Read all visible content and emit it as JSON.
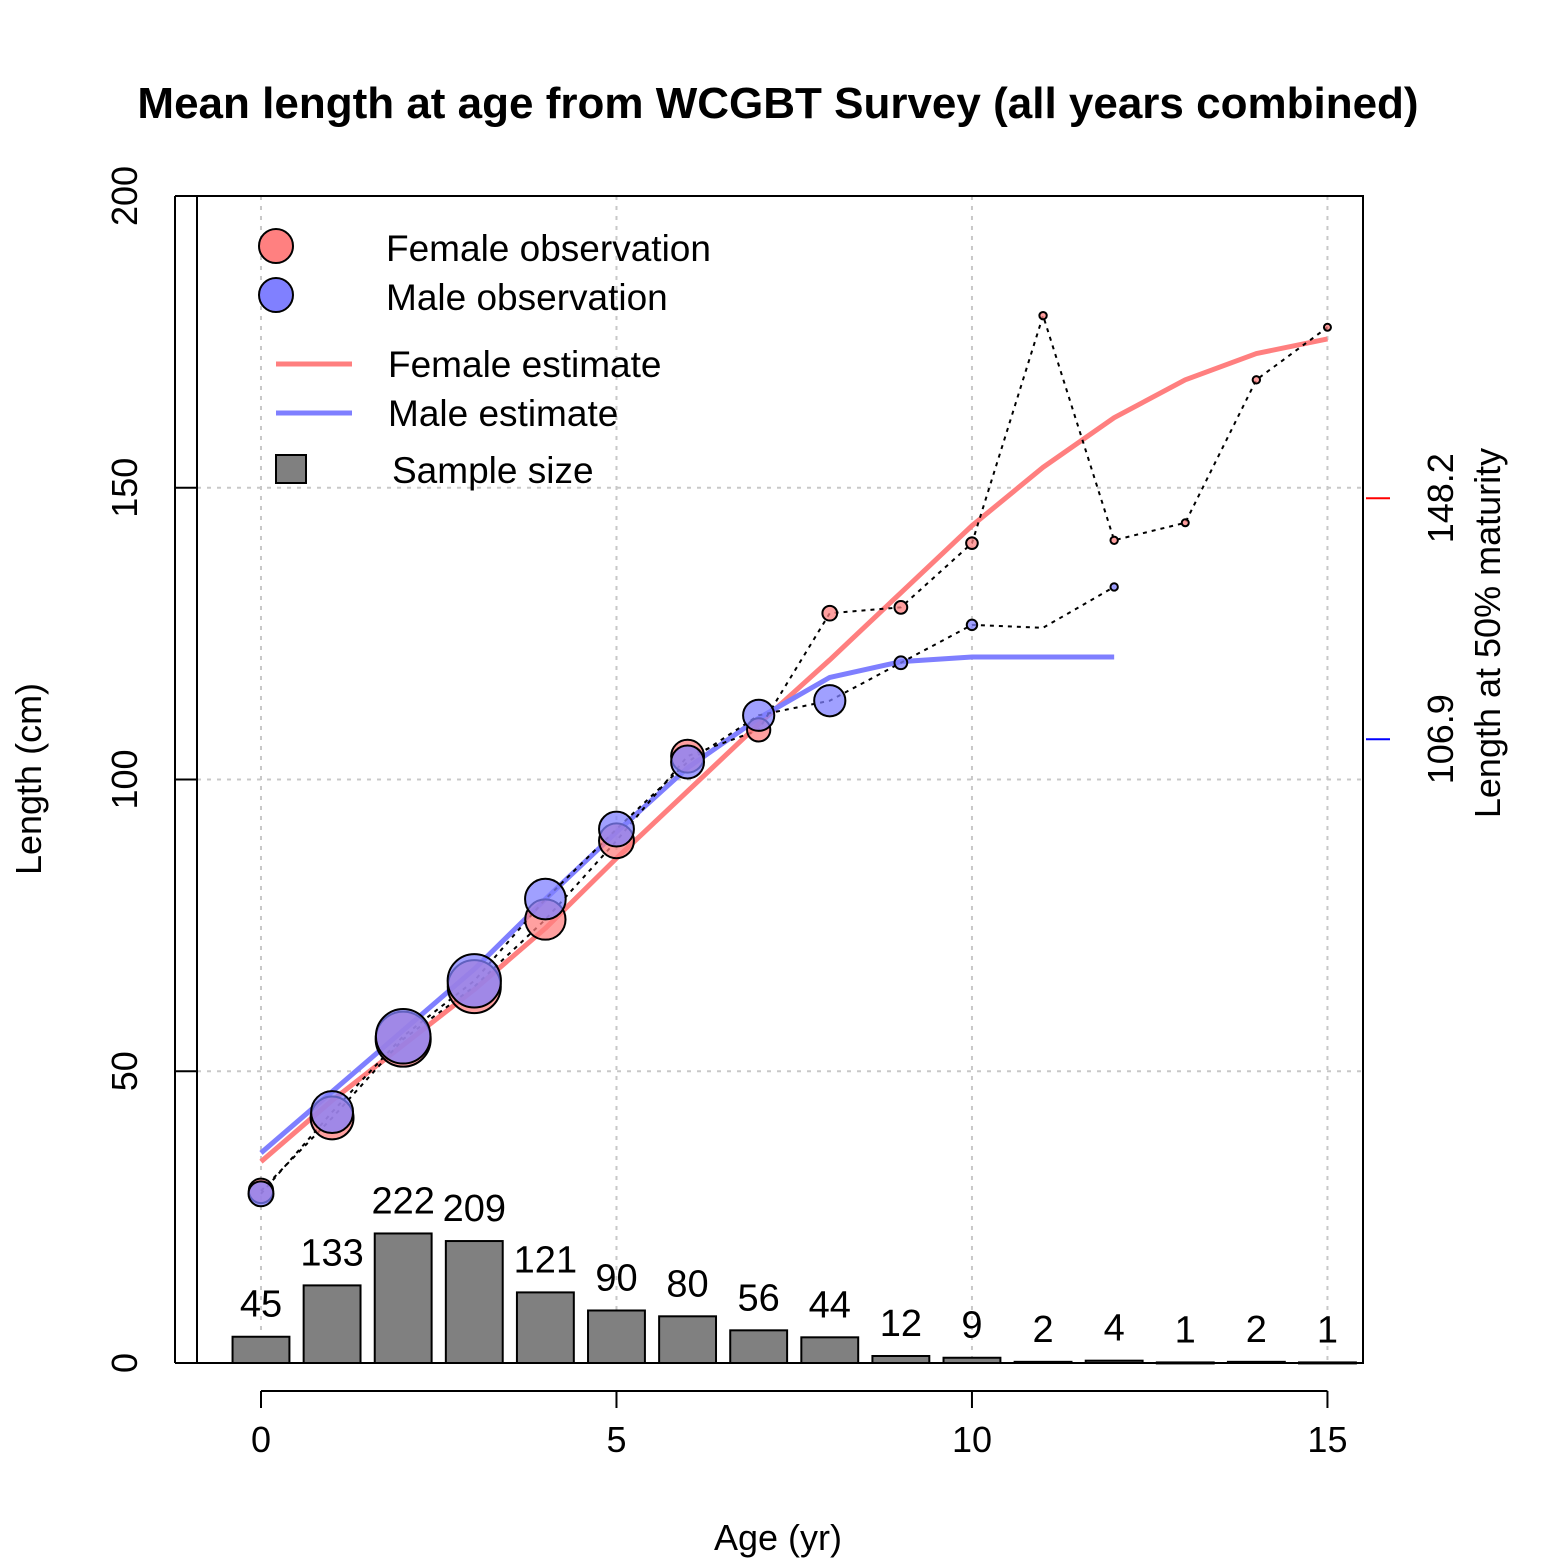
{
  "chart_data": {
    "type": "line",
    "title": "Mean length at age from WCGBT Survey (all years combined)",
    "xlabel": "Age (yr)",
    "ylabel": "Length (cm)",
    "right_axis_label": "Length at 50% maturity",
    "xlim": [
      -0.9,
      15.5
    ],
    "ylim": [
      0,
      200
    ],
    "x_ticks": [
      0,
      5,
      10,
      15
    ],
    "y_ticks": [
      0,
      50,
      100,
      150,
      200
    ],
    "grid": true,
    "legend_position": "top-left",
    "legend": [
      {
        "key": "female_obs",
        "label": "Female observation"
      },
      {
        "key": "male_obs",
        "label": "Male observation"
      },
      {
        "key": "female_est",
        "label": "Female estimate"
      },
      {
        "key": "male_est",
        "label": "Male estimate"
      },
      {
        "key": "sample",
        "label": "Sample size"
      }
    ],
    "colors": {
      "female_fill": "#ff8080",
      "male_fill": "#8080ff",
      "female_line": "#ff7f7f",
      "male_line": "#7f7fff",
      "female_marker": "#ff0000",
      "male_marker": "#0000ff",
      "bar_fill": "#808080"
    },
    "maturity_markers": [
      {
        "sex": "female",
        "value": 148.2,
        "label": "148.2"
      },
      {
        "sex": "male",
        "value": 106.9,
        "label": "106.9"
      }
    ],
    "sample_size": {
      "ages": [
        0,
        1,
        2,
        3,
        4,
        5,
        6,
        7,
        8,
        9,
        10,
        11,
        12,
        13,
        14,
        15
      ],
      "n": [
        45,
        133,
        222,
        209,
        121,
        90,
        80,
        56,
        44,
        12,
        9,
        2,
        4,
        1,
        2,
        1
      ],
      "labels": [
        "45",
        "133",
        "222",
        "209",
        "121",
        "90",
        "80",
        "56",
        "44",
        "12",
        "9",
        "2",
        "4",
        "1",
        "2",
        "1"
      ],
      "bar_scale": 0.1
    },
    "series": [
      {
        "name": "Female observation",
        "kind": "points",
        "sex": "female",
        "x": [
          0,
          1,
          2,
          3,
          4,
          5,
          6,
          7,
          8,
          9,
          10,
          11,
          12,
          13,
          14,
          15
        ],
        "y": [
          29.5,
          42,
          55.5,
          64.5,
          76,
          89.5,
          104,
          108.5,
          128.5,
          129.5,
          140.5,
          179.5,
          141,
          144,
          168.5,
          177.5
        ],
        "n": [
          22,
          68,
          112,
          104,
          60,
          45,
          40,
          20,
          8,
          6,
          5,
          2,
          2,
          1,
          2,
          1
        ]
      },
      {
        "name": "Male observation",
        "kind": "points",
        "sex": "male",
        "x": [
          0,
          1,
          2,
          3,
          4,
          5,
          6,
          7,
          8,
          9,
          10,
          11,
          12
        ],
        "y": [
          29,
          43,
          56,
          65.5,
          79.5,
          91.5,
          103,
          111,
          113.5,
          120,
          126.5,
          126,
          133
        ],
        "n": [
          23,
          65,
          110,
          105,
          61,
          45,
          40,
          36,
          36,
          6,
          4,
          0,
          2
        ]
      },
      {
        "name": "Female estimate",
        "kind": "line",
        "sex": "female",
        "x": [
          0,
          1,
          2,
          3,
          4,
          5,
          6,
          7,
          8,
          9,
          10,
          11,
          12,
          13,
          14,
          15
        ],
        "y": [
          34.5,
          45,
          54.5,
          64,
          74.5,
          86.5,
          98,
          109.5,
          120.5,
          132,
          143.5,
          153.5,
          162,
          168.5,
          173,
          175.5
        ]
      },
      {
        "name": "Male estimate",
        "kind": "line",
        "sex": "male",
        "x": [
          0,
          1,
          2,
          3,
          4,
          5,
          6,
          7,
          8,
          9,
          10,
          11,
          12
        ],
        "y": [
          36,
          46.5,
          57,
          67.5,
          79.5,
          91,
          102,
          110.5,
          117.5,
          120.2,
          121,
          121,
          121
        ]
      }
    ]
  }
}
